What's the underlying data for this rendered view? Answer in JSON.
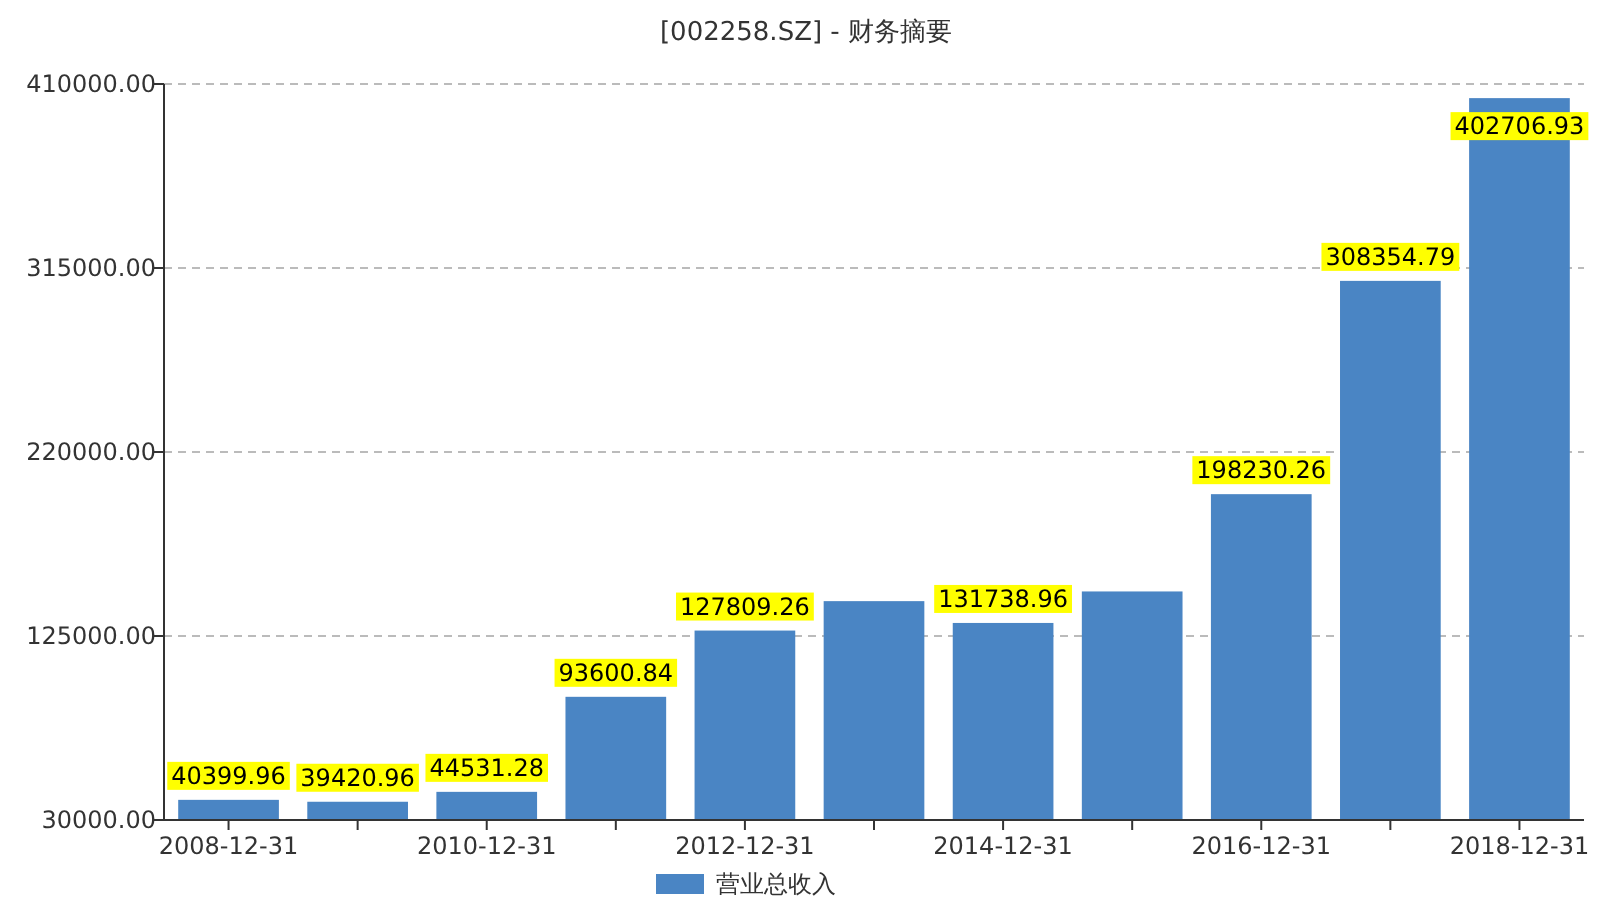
{
  "chart_data": {
    "type": "bar",
    "title": "[002258.SZ] - 财务摘要",
    "categories": [
      "2008-12-31",
      null,
      "2010-12-31",
      null,
      "2012-12-31",
      null,
      "2014-12-31",
      null,
      "2016-12-31",
      null,
      "2018-12-31"
    ],
    "series": [
      {
        "name": "营业总收入",
        "color": "#4a85c4",
        "values": [
          40399.96,
          39420.96,
          44531.28,
          93600.84,
          127809.26,
          143000,
          131738.96,
          148000,
          198230.26,
          308354.79,
          402706.93
        ],
        "value_labels": [
          "40399.96",
          "39420.96",
          "44531.28",
          "93600.84",
          "127809.26",
          null,
          "131738.96",
          null,
          "198230.26",
          "308354.79",
          "402706.93"
        ]
      }
    ],
    "ylim": [
      30000,
      410000
    ],
    "yticks": [
      {
        "value": 30000,
        "label": "30000.00"
      },
      {
        "value": 125000,
        "label": "125000.00"
      },
      {
        "value": 220000,
        "label": "220000.00"
      },
      {
        "value": 315000,
        "label": "315000.00"
      },
      {
        "value": 410000,
        "label": "410000.00"
      }
    ],
    "grid": "y",
    "legend": "bottom"
  }
}
